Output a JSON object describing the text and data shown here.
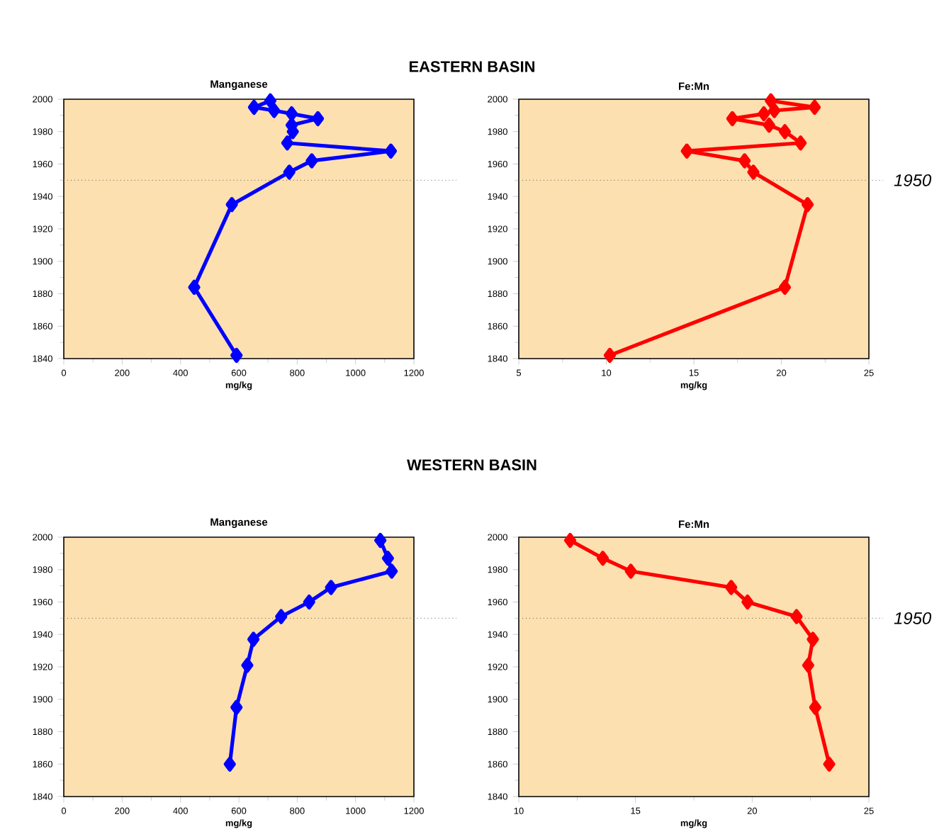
{
  "chart_data": [
    {
      "type": "line",
      "title": "Manganese",
      "xlabel": "mg/kg",
      "annotations": [
        "EASTERN BASIN"
      ],
      "xlim": [
        0,
        1200
      ],
      "xticks": [
        0,
        200,
        400,
        600,
        800,
        1000,
        1200
      ],
      "ylim": [
        1840,
        2000
      ],
      "yticks": [
        1840,
        1860,
        1880,
        1900,
        1920,
        1940,
        1960,
        1980,
        2000
      ],
      "marker": "diamond",
      "grid": false,
      "ref_lines": [
        {
          "axis": "y",
          "value": 1950,
          "color": "#555555",
          "line_style": "dotted"
        }
      ],
      "series": [
        {
          "color": "#0000ff",
          "x": [
            592,
            447,
            576,
            773,
            850,
            1121,
            766,
            785,
            781,
            871,
            781,
            721,
            652,
            708
          ],
          "values": [
            1842,
            1884,
            1935,
            1955,
            1962,
            1968,
            1973,
            1980,
            1984,
            1988,
            1991,
            1993,
            1995,
            1999
          ]
        }
      ]
    },
    {
      "type": "line",
      "title": "Fe:Mn",
      "xlabel": "mg/kg",
      "xlim": [
        5,
        25
      ],
      "xticks": [
        5,
        10,
        15,
        20,
        25
      ],
      "ylim": [
        1840,
        2000
      ],
      "yticks": [
        1840,
        1860,
        1880,
        1900,
        1920,
        1940,
        1960,
        1980,
        2000
      ],
      "marker": "diamond",
      "grid": false,
      "ref_lines": [
        {
          "axis": "y",
          "value": 1950,
          "label": "1950",
          "color": "#555555",
          "line_style": "dotted"
        }
      ],
      "series": [
        {
          "color": "#ff0000",
          "x": [
            10.2,
            20.2,
            21.5,
            18.4,
            17.9,
            14.6,
            21.1,
            20.2,
            19.3,
            17.2,
            19.0,
            19.6,
            21.9,
            19.4
          ],
          "values": [
            1842,
            1884,
            1935,
            1955,
            1962,
            1968,
            1973,
            1980,
            1984,
            1988,
            1991,
            1993,
            1995,
            1999
          ]
        }
      ]
    },
    {
      "type": "line",
      "title": "Manganese",
      "xlabel": "mg/kg",
      "annotations": [
        "WESTERN BASIN"
      ],
      "xlim": [
        0,
        1200
      ],
      "xticks": [
        0,
        200,
        400,
        600,
        800,
        1000,
        1200
      ],
      "ylim": [
        1840,
        2000
      ],
      "yticks": [
        1840,
        1860,
        1880,
        1900,
        1920,
        1940,
        1960,
        1980,
        2000
      ],
      "marker": "diamond",
      "grid": false,
      "ref_lines": [
        {
          "axis": "y",
          "value": 1950,
          "color": "#555555",
          "line_style": "dotted"
        }
      ],
      "series": [
        {
          "color": "#0000ff",
          "x": [
            569,
            592,
            629,
            650,
            745,
            841,
            916,
            1124,
            1111,
            1085
          ],
          "values": [
            1860,
            1895,
            1921,
            1937,
            1951,
            1960,
            1969,
            1979,
            1987,
            1998
          ]
        }
      ]
    },
    {
      "type": "line",
      "title": "Fe:Mn",
      "xlabel": "mg/kg",
      "xlim": [
        10,
        25
      ],
      "xticks": [
        10,
        15,
        20,
        25
      ],
      "ylim": [
        1840,
        2000
      ],
      "yticks": [
        1840,
        1860,
        1880,
        1900,
        1920,
        1940,
        1960,
        1980,
        2000
      ],
      "marker": "diamond",
      "grid": false,
      "ref_lines": [
        {
          "axis": "y",
          "value": 1950,
          "label": "1950",
          "color": "#555555",
          "line_style": "dotted"
        }
      ],
      "series": [
        {
          "color": "#ff0000",
          "x": [
            23.3,
            22.7,
            22.4,
            22.6,
            21.9,
            19.8,
            19.1,
            14.8,
            13.6,
            12.2
          ],
          "values": [
            1860,
            1895,
            1921,
            1937,
            1951,
            1960,
            1969,
            1979,
            1987,
            1998
          ]
        }
      ]
    }
  ]
}
